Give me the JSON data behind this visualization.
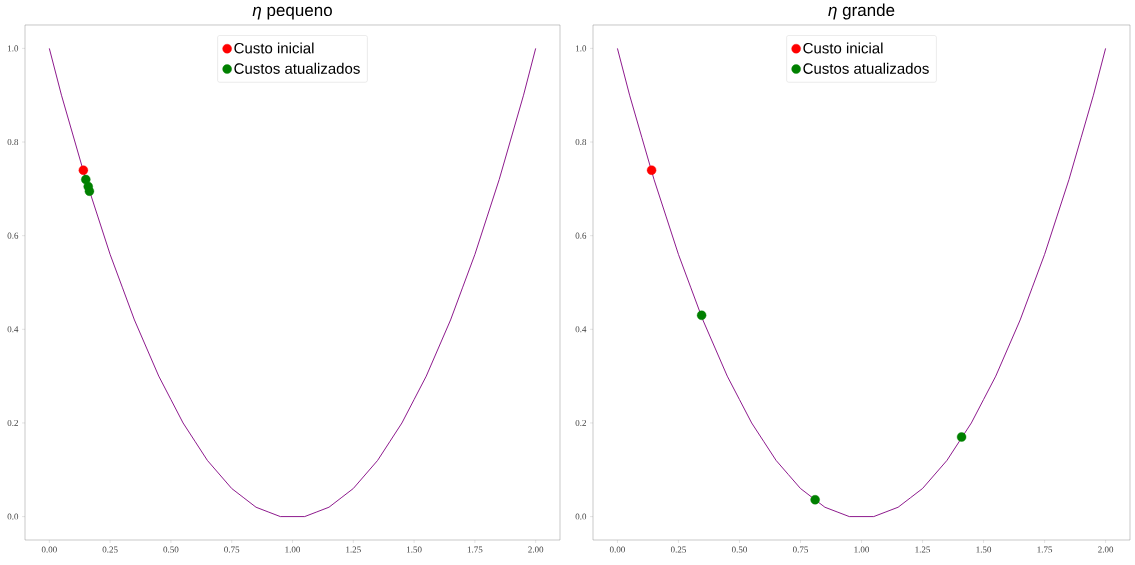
{
  "chart_data": [
    {
      "type": "scatter",
      "title": "*η* pequeno",
      "xlim": [
        -0.1,
        2.1
      ],
      "ylim": [
        -0.05,
        1.05
      ],
      "xticks": [
        {
          "value": 0,
          "label": "0.00"
        },
        {
          "value": 0.25,
          "label": "0.25"
        },
        {
          "value": 0.5,
          "label": "0.50"
        },
        {
          "value": 0.75,
          "label": "0.75"
        },
        {
          "value": 1,
          "label": "1.00"
        },
        {
          "value": 1.25,
          "label": "1.25"
        },
        {
          "value": 1.5,
          "label": "1.50"
        },
        {
          "value": 1.75,
          "label": "1.75"
        },
        {
          "value": 2,
          "label": "2.00"
        }
      ],
      "yticks": [
        {
          "value": 0,
          "label": "0.0"
        },
        {
          "value": 0.2,
          "label": "0.2"
        },
        {
          "value": 0.4,
          "label": "0.4"
        },
        {
          "value": 0.6,
          "label": "0.6"
        },
        {
          "value": 0.8,
          "label": "0.8"
        },
        {
          "value": 1,
          "label": "1.0"
        }
      ],
      "legend": "top",
      "series": [
        {
          "type": "line",
          "marker": "none",
          "color": "#800080",
          "x": [
            0,
            0.05,
            0.1,
            0.15,
            0.2,
            0.25,
            0.3,
            0.35,
            0.4,
            0.45,
            0.5,
            0.55,
            0.6,
            0.65,
            0.7,
            0.75,
            0.8,
            0.85,
            0.9,
            0.95,
            1,
            1.05,
            1.1,
            1.15,
            1.2,
            1.25,
            1.3,
            1.35,
            1.4,
            1.45,
            1.5,
            1.55,
            1.6,
            1.65,
            1.7,
            1.75,
            1.8,
            1.85,
            1.9,
            1.95,
            2
          ],
          "values": [
            1,
            0.9,
            0.81,
            0.72,
            0.64,
            0.56,
            0.49,
            0.42,
            0.36,
            0.3,
            0.25,
            0.2,
            0.16,
            0.12,
            0.09,
            0.06,
            0.04,
            0.02,
            0.01,
            0,
            0,
            0,
            0.01,
            0.02,
            0.04,
            0.06,
            0.09,
            0.12,
            0.16,
            0.2,
            0.25,
            0.3,
            0.36,
            0.42,
            0.49,
            0.56,
            0.64,
            0.72,
            0.81,
            0.9,
            1
          ]
        },
        {
          "name": "Custo inicial",
          "color": "#ff0000",
          "x": [
            0.14
          ],
          "values": [
            0.74
          ]
        },
        {
          "name": "Custos atualizados",
          "color": "#008000",
          "x": [
            0.15,
            0.16,
            0.165
          ],
          "values": [
            0.72,
            0.705,
            0.695
          ]
        }
      ]
    },
    {
      "type": "scatter",
      "title": "*η* grande",
      "xlim": [
        -0.1,
        2.1
      ],
      "ylim": [
        -0.05,
        1.05
      ],
      "xticks": [
        {
          "value": 0,
          "label": "0.00"
        },
        {
          "value": 0.25,
          "label": "0.25"
        },
        {
          "value": 0.5,
          "label": "0.50"
        },
        {
          "value": 0.75,
          "label": "0.75"
        },
        {
          "value": 1,
          "label": "1.00"
        },
        {
          "value": 1.25,
          "label": "1.25"
        },
        {
          "value": 1.5,
          "label": "1.50"
        },
        {
          "value": 1.75,
          "label": "1.75"
        },
        {
          "value": 2,
          "label": "2.00"
        }
      ],
      "yticks": [
        {
          "value": 0,
          "label": "0.0"
        },
        {
          "value": 0.2,
          "label": "0.2"
        },
        {
          "value": 0.4,
          "label": "0.4"
        },
        {
          "value": 0.6,
          "label": "0.6"
        },
        {
          "value": 0.8,
          "label": "0.8"
        },
        {
          "value": 1,
          "label": "1.0"
        }
      ],
      "legend": "top",
      "series": [
        {
          "type": "line",
          "marker": "none",
          "color": "#800080",
          "x": [
            0,
            0.05,
            0.1,
            0.15,
            0.2,
            0.25,
            0.3,
            0.35,
            0.4,
            0.45,
            0.5,
            0.55,
            0.6,
            0.65,
            0.7,
            0.75,
            0.8,
            0.85,
            0.9,
            0.95,
            1,
            1.05,
            1.1,
            1.15,
            1.2,
            1.25,
            1.3,
            1.35,
            1.4,
            1.45,
            1.5,
            1.55,
            1.6,
            1.65,
            1.7,
            1.75,
            1.8,
            1.85,
            1.9,
            1.95,
            2
          ],
          "values": [
            1,
            0.9,
            0.81,
            0.72,
            0.64,
            0.56,
            0.49,
            0.42,
            0.36,
            0.3,
            0.25,
            0.2,
            0.16,
            0.12,
            0.09,
            0.06,
            0.04,
            0.02,
            0.01,
            0,
            0,
            0,
            0.01,
            0.02,
            0.04,
            0.06,
            0.09,
            0.12,
            0.16,
            0.2,
            0.25,
            0.3,
            0.36,
            0.42,
            0.49,
            0.56,
            0.64,
            0.72,
            0.81,
            0.9,
            1
          ]
        },
        {
          "name": "Custo inicial",
          "color": "#ff0000",
          "x": [
            0.14
          ],
          "values": [
            0.74
          ]
        },
        {
          "name": "Custos atualizados",
          "color": "#008000",
          "x": [
            0.345,
            0.81,
            1.41
          ],
          "values": [
            0.43,
            0.036,
            0.17
          ]
        }
      ]
    }
  ]
}
